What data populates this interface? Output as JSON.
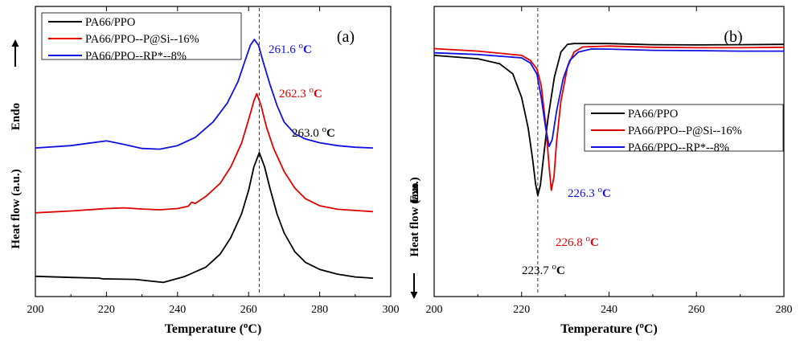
{
  "chart_data": [
    {
      "type": "line",
      "panel_label": "(a)",
      "xlabel": "Temperature (",
      "xlabel_unit": "oC",
      "xlabel_close": ")",
      "ylabel": "Heat flow (a.u.)",
      "direction_label": "Endo",
      "direction_arrow": "up",
      "xlim": [
        200,
        300
      ],
      "xticks": [
        200,
        220,
        240,
        260,
        280,
        300
      ],
      "reference_line_x": 263,
      "series": [
        {
          "name": "PA66/PPO",
          "color": "#000000",
          "x": [
            200,
            210,
            218,
            219,
            220,
            228,
            236,
            242,
            248,
            252,
            255,
            258,
            260,
            261.5,
            263,
            264.5,
            266,
            268,
            270,
            273,
            276,
            280,
            285,
            290,
            295
          ],
          "y": [
            0.6,
            0.1,
            -0.2,
            -0.5,
            -0.5,
            -0.7,
            -2.0,
            0.5,
            4.5,
            10,
            17,
            27,
            37,
            47,
            53,
            47,
            38,
            27,
            19,
            11,
            6.5,
            3.5,
            1.5,
            0.3,
            -0.2
          ]
        },
        {
          "name": "PA66/PPO--P@Si--16%",
          "color": "#e00000",
          "x": [
            200,
            210,
            220,
            225,
            230,
            235,
            240,
            243,
            244,
            245,
            248,
            252,
            255,
            258,
            260,
            261.5,
            262.3,
            263.5,
            265,
            267,
            270,
            273,
            276,
            280,
            285,
            290,
            295
          ],
          "y": [
            27.5,
            28.3,
            29.3,
            29.6,
            29.1,
            28.8,
            29.3,
            30.3,
            32,
            31.5,
            34.5,
            40,
            47,
            57,
            67,
            75,
            78,
            73,
            64,
            55,
            45,
            38,
            33.5,
            30.5,
            29,
            28.5,
            28
          ]
        },
        {
          "name": "PA66/PPO--RP*--8%",
          "color": "#1010e0",
          "x": [
            200,
            210,
            215,
            220,
            225,
            230,
            235,
            240,
            245,
            250,
            254,
            257,
            259,
            260.5,
            261.6,
            262.8,
            264,
            266,
            268,
            270,
            273,
            276,
            280,
            285,
            290,
            295
          ],
          "y": [
            55,
            56,
            57,
            58,
            56.5,
            54.8,
            54.5,
            56,
            59.5,
            66,
            74,
            83,
            92,
            98.5,
            101,
            98.5,
            92,
            82,
            73,
            66,
            61,
            58.8,
            57.2,
            56,
            55.3,
            55
          ]
        }
      ],
      "annotations": [
        {
          "text": "261.6",
          "unit": "oC",
          "color": "#1010e0"
        },
        {
          "text": "262.3",
          "unit": "oC",
          "color": "#e00000"
        },
        {
          "text": "263.0",
          "unit": "oC",
          "color": "#000000"
        }
      ]
    },
    {
      "type": "line",
      "panel_label": "(b)",
      "xlabel": "Temperature (",
      "xlabel_unit": "oC",
      "xlabel_close": ")",
      "ylabel": "Heat flow (a.u.)",
      "direction_label": "Exo",
      "direction_arrow": "down",
      "xlim": [
        200,
        280
      ],
      "xticks": [
        200,
        220,
        240,
        260,
        280
      ],
      "reference_line_x": 223.7,
      "series": [
        {
          "name": "PA66/PPO",
          "color": "#000000",
          "x": [
            200,
            210,
            215,
            218,
            220,
            221.5,
            222.5,
            223.2,
            223.7,
            224.3,
            225,
            226,
            227.5,
            229,
            230.5,
            232,
            240,
            250,
            260,
            270,
            280
          ],
          "y": [
            93,
            91,
            88,
            82,
            68,
            50,
            32,
            17,
            10,
            16,
            32,
            55,
            80,
            95,
            99.5,
            100,
            100,
            99.3,
            99.2,
            99.3,
            99.5
          ]
        },
        {
          "name": "PA66/PPO--P@Si--16%",
          "color": "#e00000",
          "x": [
            200,
            210,
            220,
            222,
            223.5,
            224.5,
            225.5,
            226.3,
            226.8,
            227.4,
            228,
            229,
            230.5,
            232,
            234,
            240,
            250,
            260,
            270,
            280
          ],
          "y": [
            97,
            95.5,
            93,
            90,
            85,
            75,
            52,
            27,
            13,
            21,
            42,
            66,
            86,
            95,
            98,
            98.5,
            97.8,
            97.5,
            97.5,
            97.8
          ]
        },
        {
          "name": "PA66/PPO--RP*--8%",
          "color": "#1010e0",
          "x": [
            200,
            210,
            220,
            222,
            223.5,
            224.5,
            225.5,
            226.3,
            227,
            228,
            229.5,
            231,
            233,
            236,
            240,
            250,
            260,
            270,
            280
          ],
          "y": [
            94.5,
            93.5,
            91.5,
            88.5,
            82,
            68,
            50,
            39,
            43,
            60,
            79,
            90,
            95,
            96.8,
            96.7,
            96,
            95.8,
            95.5,
            95.5
          ]
        }
      ],
      "annotations": [
        {
          "text": "226.3",
          "unit": "oC",
          "color": "#1010e0"
        },
        {
          "text": "226.8",
          "unit": "oC",
          "color": "#e00000"
        },
        {
          "text": "223.7",
          "unit": "oC",
          "color": "#000000"
        }
      ]
    }
  ]
}
